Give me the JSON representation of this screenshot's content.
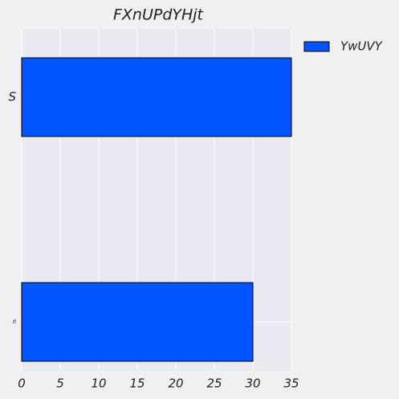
{
  "chart_data": {
    "type": "barh",
    "title": "FXnUPdYHjt",
    "categories": [
      "S",
      "ñ"
    ],
    "series": [
      {
        "name": "YwUVY",
        "color": "#0055ff",
        "values": [
          35,
          30
        ]
      }
    ],
    "xlim": [
      0,
      35
    ],
    "xticks": [
      0,
      5,
      10,
      15,
      20,
      25,
      30,
      35
    ],
    "grid": true,
    "legend": "upper right outside"
  }
}
